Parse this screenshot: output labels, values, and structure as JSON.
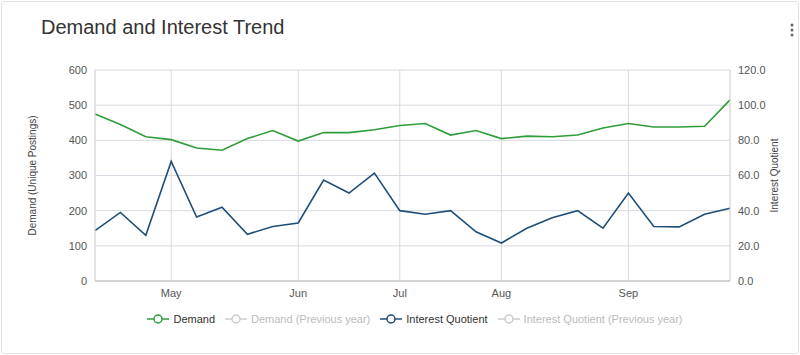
{
  "chart_data": {
    "type": "line",
    "title": "Demand and Interest Trend",
    "y_label": "Demand (Unique Postings)",
    "y2_label": "Interest Quotient",
    "categories": [
      null,
      null,
      null,
      "May",
      null,
      null,
      null,
      null,
      "Jun",
      null,
      null,
      null,
      "Jul",
      null,
      null,
      null,
      "Aug",
      null,
      null,
      null,
      null,
      "Sep",
      null,
      null,
      null,
      null
    ],
    "series": [
      {
        "name": "Demand",
        "color": "#2e9e3a",
        "axis": "y",
        "values": [
          475,
          445,
          410,
          402,
          378,
          372,
          405,
          428,
          398,
          422,
          422,
          430,
          442,
          448,
          415,
          428,
          405,
          412,
          410,
          415,
          435,
          448,
          438,
          438,
          440,
          515
        ]
      },
      {
        "name": "Demand (Previous year)",
        "color": "#cccccc",
        "axis": "y",
        "values": [
          null,
          null,
          null,
          null,
          null,
          null,
          null,
          null,
          null,
          null,
          null,
          null,
          null,
          null,
          null,
          null,
          null,
          null,
          null,
          null,
          null,
          null,
          null,
          null,
          null,
          null
        ]
      },
      {
        "name": "Interest Quotient",
        "color": "#1f4e79",
        "axis": "y2",
        "values": [
          28.6,
          39,
          26,
          68,
          36.4,
          42,
          26.6,
          31,
          33,
          57.4,
          50,
          61.4,
          40,
          38,
          40,
          28,
          21.6,
          30,
          36,
          40,
          30,
          50,
          31,
          30.8,
          38,
          41.4
        ]
      },
      {
        "name": "Interest Quotient (Previous year)",
        "color": "#cccccc",
        "axis": "y2",
        "values": [
          null,
          null,
          null,
          null,
          null,
          null,
          null,
          null,
          null,
          null,
          null,
          null,
          null,
          null,
          null,
          null,
          null,
          null,
          null,
          null,
          null,
          null,
          null,
          null,
          null,
          null
        ]
      }
    ],
    "ylim": [
      0,
      600
    ],
    "yticks": [
      0,
      100,
      200,
      300,
      400,
      500,
      600
    ],
    "y2lim": [
      0,
      120
    ],
    "y2ticks": [
      {
        "value": 0,
        "label": "0.0"
      },
      {
        "value": 20,
        "label": "20.0"
      },
      {
        "value": 40,
        "label": "40.0"
      },
      {
        "value": 60,
        "label": "60.0"
      },
      {
        "value": 80,
        "label": "80.0"
      },
      {
        "value": 100,
        "label": "100.0"
      },
      {
        "value": 120,
        "label": "120.0"
      }
    ],
    "grid": true,
    "legend": "bottom"
  }
}
